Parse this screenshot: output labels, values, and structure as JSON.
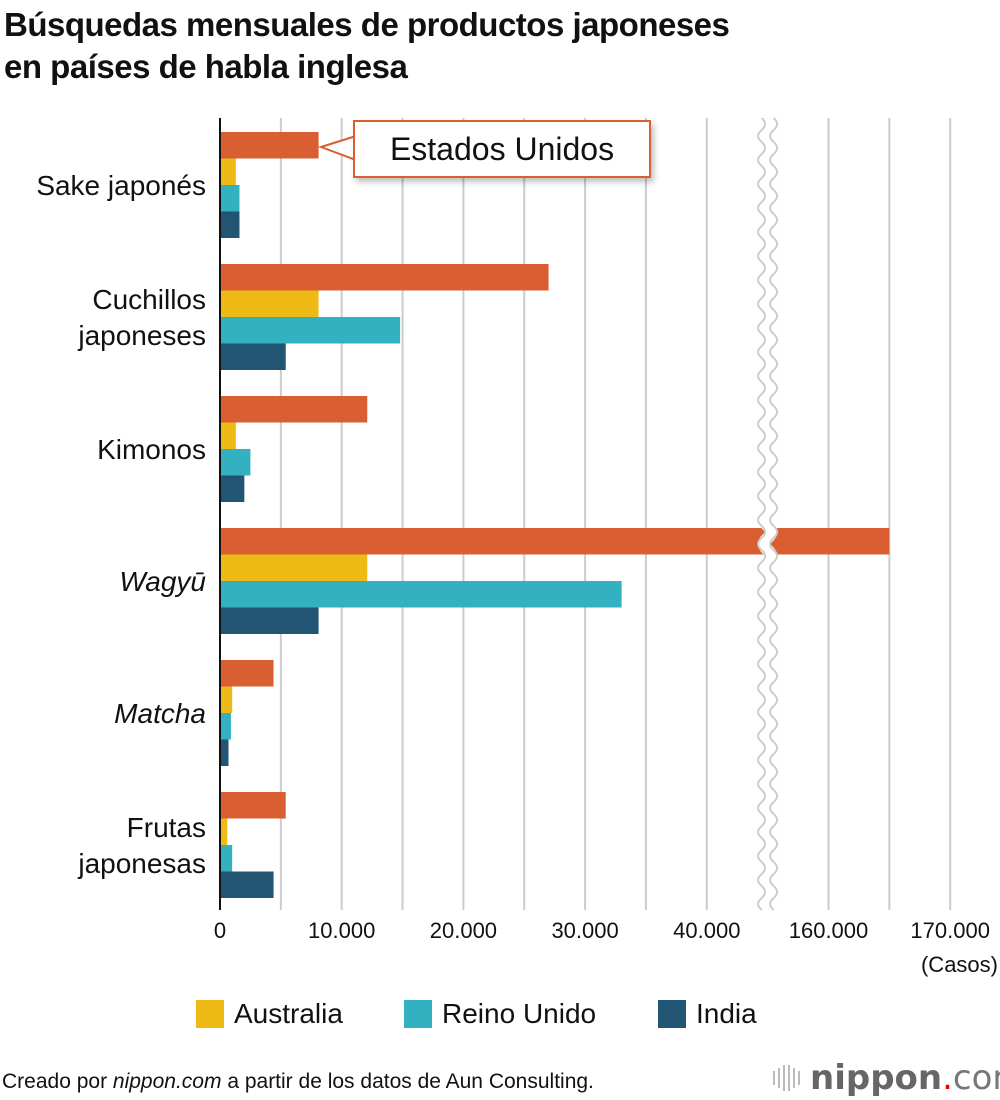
{
  "title": [
    "Búsquedas mensuales de productos japoneses",
    "en países de habla inglesa"
  ],
  "chart_data": {
    "type": "bar",
    "orientation": "horizontal",
    "categories": [
      "Sake japonés",
      "Cuchillos japoneses",
      "Kimonos",
      "Wagyū",
      "Matcha",
      "Frutas japonesas"
    ],
    "category_lines": [
      [
        "Sake japonés"
      ],
      [
        "Cuchillos",
        "japoneses"
      ],
      [
        "Kimonos"
      ],
      [
        "Wagyū"
      ],
      [
        "Matcha"
      ],
      [
        "Frutas",
        "japonesas"
      ]
    ],
    "category_italic": [
      false,
      false,
      false,
      true,
      true,
      false
    ],
    "series": [
      {
        "name": "Estados Unidos",
        "color": "#d95f32",
        "values": [
          8100,
          27000,
          12100,
          165000,
          4400,
          5400
        ]
      },
      {
        "name": "Australia",
        "color": "#f0ba16",
        "values": [
          1300,
          8100,
          1300,
          12100,
          1000,
          600
        ]
      },
      {
        "name": "Reino Unido",
        "color": "#33b1c1",
        "values": [
          1600,
          14800,
          2500,
          33000,
          900,
          1000
        ]
      },
      {
        "name": "India",
        "color": "#225473",
        "values": [
          1600,
          5400,
          2000,
          8100,
          700,
          4400
        ]
      }
    ],
    "xaxis": {
      "ticks": [
        0,
        10000,
        20000,
        30000,
        40000,
        160000,
        170000
      ],
      "tick_labels": [
        "0",
        "10.000",
        "20.000",
        "30.000",
        "40.000",
        "160.000",
        "170.000"
      ],
      "break": [
        45000,
        155000
      ],
      "unit": "(Casos)",
      "grid_step": 5000
    },
    "grid": true,
    "legend": [
      "Australia",
      "Reino Unido",
      "India"
    ],
    "legend_position": "bottom",
    "annotation": "Estados Unidos"
  },
  "source": {
    "prefix": "Creado por ",
    "site": "nippon.com",
    "suffix": " a partir de los datos de Aun Consulting."
  },
  "logo": {
    "name": "nippon",
    "dot": ".",
    "tld": "com"
  }
}
